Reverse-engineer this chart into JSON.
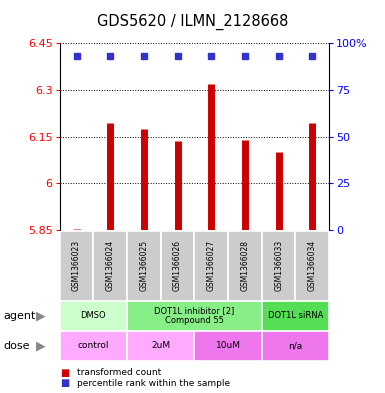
{
  "title": "GDS5620 / ILMN_2128668",
  "samples": [
    "GSM1366023",
    "GSM1366024",
    "GSM1366025",
    "GSM1366026",
    "GSM1366027",
    "GSM1366028",
    "GSM1366033",
    "GSM1366034"
  ],
  "bar_values": [
    5.853,
    6.195,
    6.175,
    6.135,
    6.32,
    6.14,
    6.1,
    6.195
  ],
  "ylim": [
    5.85,
    6.45
  ],
  "yticks": [
    5.85,
    6.0,
    6.15,
    6.3,
    6.45
  ],
  "ytick_labels": [
    "5.85",
    "6",
    "6.15",
    "6.3",
    "6.45"
  ],
  "right_yticks": [
    0,
    25,
    50,
    75,
    100
  ],
  "right_ytick_labels": [
    "0",
    "25",
    "50",
    "75",
    "100%"
  ],
  "bar_color": "#cc0000",
  "dot_color": "#3333cc",
  "agent_groups": [
    {
      "label": "DMSO",
      "color": "#ccffcc",
      "start": 0,
      "end": 2
    },
    {
      "label": "DOT1L inhibitor [2]\nCompound 55",
      "color": "#88ee88",
      "start": 2,
      "end": 6
    },
    {
      "label": "DOT1L siRNA",
      "color": "#55dd55",
      "start": 6,
      "end": 8
    }
  ],
  "dose_groups": [
    {
      "label": "control",
      "color": "#ffaaff",
      "start": 0,
      "end": 2
    },
    {
      "label": "2uM",
      "color": "#ffaaff",
      "start": 2,
      "end": 4
    },
    {
      "label": "10uM",
      "color": "#ee77ee",
      "start": 4,
      "end": 6
    },
    {
      "label": "n/a",
      "color": "#ee77ee",
      "start": 6,
      "end": 8
    }
  ],
  "agent_label": "agent",
  "dose_label": "dose",
  "legend_bar_label": "transformed count",
  "legend_dot_label": "percentile rank within the sample",
  "background_color": "#ffffff",
  "sample_row_color": "#cccccc"
}
